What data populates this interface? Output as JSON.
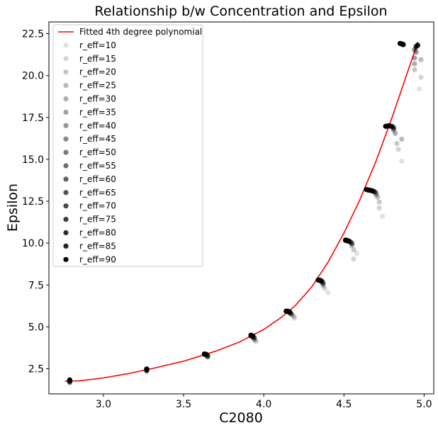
{
  "chart_data": {
    "type": "scatter",
    "title": "Relationship b/w Concentration and Epsilon",
    "xlabel": "C2080",
    "ylabel": "Epsilon",
    "xlim": [
      2.66,
      5.06
    ],
    "ylim": [
      1.0,
      23.2
    ],
    "xticks": [
      3.0,
      3.5,
      4.0,
      4.5,
      5.0
    ],
    "xtick_labels": [
      "3.0",
      "3.5",
      "4.0",
      "4.5",
      "5.0"
    ],
    "yticks": [
      2.5,
      5.0,
      7.5,
      10.0,
      12.5,
      15.0,
      17.5,
      20.0,
      22.5
    ],
    "ytick_labels": [
      "2.5",
      "5.0",
      "7.5",
      "10.0",
      "12.5",
      "15.0",
      "17.5",
      "20.0",
      "22.5"
    ],
    "grid": false,
    "legend_position": "top-left",
    "fit": {
      "name": "Fitted 4th degree polynomial",
      "color": "#ff0000",
      "x": [
        2.76,
        2.85,
        3.0,
        3.15,
        3.3,
        3.5,
        3.7,
        3.85,
        4.0,
        4.1,
        4.2,
        4.3,
        4.4,
        4.5,
        4.6,
        4.7,
        4.8,
        4.9,
        4.96
      ],
      "y": [
        1.75,
        1.78,
        1.95,
        2.2,
        2.5,
        2.95,
        3.55,
        4.1,
        4.85,
        5.5,
        6.3,
        7.4,
        8.85,
        10.6,
        12.6,
        14.9,
        17.5,
        20.3,
        22.0
      ]
    },
    "series": [
      {
        "name": "r_eff=10",
        "alpha": 0.12,
        "x": [
          2.79,
          3.27,
          3.65,
          3.95,
          4.19,
          4.4,
          4.58,
          4.74,
          4.86,
          4.97
        ],
        "y": [
          1.65,
          2.32,
          3.18,
          4.12,
          5.5,
          7.05,
          9.4,
          11.6,
          14.9,
          19.2
        ]
      },
      {
        "name": "r_eff=15",
        "alpha": 0.17,
        "x": [
          2.79,
          3.27,
          3.65,
          3.95,
          4.19,
          4.38,
          4.56,
          4.72,
          4.84,
          4.98
        ],
        "y": [
          1.67,
          2.35,
          3.2,
          4.18,
          5.6,
          7.3,
          9.05,
          12.1,
          15.6,
          19.9
        ]
      },
      {
        "name": "r_eff=20",
        "alpha": 0.22,
        "x": [
          2.79,
          3.27,
          3.65,
          3.94,
          4.18,
          4.37,
          4.56,
          4.72,
          4.83,
          4.94
        ],
        "y": [
          1.7,
          2.38,
          3.22,
          4.25,
          5.7,
          7.45,
          9.6,
          12.45,
          15.95,
          20.35
        ]
      },
      {
        "name": "r_eff=25",
        "alpha": 0.27,
        "x": [
          2.79,
          3.27,
          3.65,
          3.94,
          4.17,
          4.37,
          4.55,
          4.71,
          4.86,
          4.98
        ],
        "y": [
          1.72,
          2.4,
          3.25,
          4.3,
          5.75,
          7.55,
          9.85,
          12.75,
          16.2,
          20.95
        ]
      },
      {
        "name": "r_eff=30",
        "alpha": 0.32,
        "x": [
          2.79,
          3.27,
          3.65,
          3.94,
          4.17,
          4.37,
          4.55,
          4.7,
          4.82,
          4.94
        ],
        "y": [
          1.74,
          2.42,
          3.28,
          4.35,
          5.8,
          7.6,
          9.95,
          12.9,
          16.55,
          20.7
        ]
      },
      {
        "name": "r_eff=35",
        "alpha": 0.37,
        "x": [
          2.79,
          3.27,
          3.65,
          3.94,
          4.17,
          4.37,
          4.55,
          4.7,
          4.81,
          4.94
        ],
        "y": [
          1.76,
          2.43,
          3.3,
          4.38,
          5.82,
          7.65,
          10.0,
          13.0,
          16.75,
          21.05
        ]
      },
      {
        "name": "r_eff=40",
        "alpha": 0.42,
        "x": [
          2.79,
          3.27,
          3.64,
          3.93,
          4.16,
          4.36,
          4.54,
          4.69,
          4.81,
          4.95
        ],
        "y": [
          1.77,
          2.44,
          3.32,
          4.4,
          5.85,
          7.7,
          10.05,
          13.05,
          16.85,
          21.4
        ]
      },
      {
        "name": "r_eff=45",
        "alpha": 0.47,
        "x": [
          2.79,
          3.27,
          3.64,
          3.93,
          4.16,
          4.36,
          4.54,
          4.69,
          4.81,
          4.94
        ],
        "y": [
          1.78,
          2.45,
          3.33,
          4.42,
          5.87,
          7.72,
          10.08,
          13.08,
          16.9,
          21.55
        ]
      },
      {
        "name": "r_eff=50",
        "alpha": 0.52,
        "x": [
          2.79,
          3.27,
          3.64,
          3.93,
          4.16,
          4.36,
          4.53,
          4.68,
          4.8,
          4.95
        ],
        "y": [
          1.79,
          2.46,
          3.34,
          4.44,
          5.88,
          7.74,
          10.1,
          13.1,
          16.95,
          21.7
        ]
      },
      {
        "name": "r_eff=55",
        "alpha": 0.57,
        "x": [
          2.79,
          3.27,
          3.64,
          3.93,
          4.16,
          4.36,
          4.53,
          4.68,
          4.8,
          4.95
        ],
        "y": [
          1.8,
          2.46,
          3.35,
          4.45,
          5.9,
          7.75,
          10.12,
          13.12,
          16.97,
          21.75
        ]
      },
      {
        "name": "r_eff=60",
        "alpha": 0.62,
        "x": [
          2.79,
          3.27,
          3.64,
          3.93,
          4.16,
          4.35,
          4.53,
          4.67,
          4.79,
          4.96
        ],
        "y": [
          1.8,
          2.47,
          3.35,
          4.46,
          5.9,
          7.76,
          10.13,
          13.13,
          16.98,
          21.8
        ]
      },
      {
        "name": "r_eff=65",
        "alpha": 0.67,
        "x": [
          2.79,
          3.27,
          3.64,
          3.93,
          4.15,
          4.35,
          4.52,
          4.67,
          4.79,
          4.96
        ],
        "y": [
          1.81,
          2.47,
          3.36,
          4.47,
          5.91,
          7.77,
          10.14,
          13.14,
          16.99,
          21.82
        ]
      },
      {
        "name": "r_eff=70",
        "alpha": 0.72,
        "x": [
          2.79,
          3.27,
          3.64,
          3.92,
          4.15,
          4.35,
          4.52,
          4.66,
          4.78,
          4.87
        ],
        "y": [
          1.81,
          2.47,
          3.36,
          4.47,
          5.91,
          7.78,
          10.15,
          13.15,
          17.0,
          21.84
        ]
      },
      {
        "name": "r_eff=75",
        "alpha": 0.77,
        "x": [
          2.79,
          3.27,
          3.63,
          3.92,
          4.15,
          4.35,
          4.52,
          4.66,
          4.78,
          4.87
        ],
        "y": [
          1.82,
          2.48,
          3.37,
          4.48,
          5.92,
          7.78,
          10.16,
          13.16,
          17.0,
          21.86
        ]
      },
      {
        "name": "r_eff=80",
        "alpha": 0.82,
        "x": [
          2.79,
          3.27,
          3.63,
          3.92,
          4.15,
          4.34,
          4.51,
          4.65,
          4.77,
          4.86
        ],
        "y": [
          1.82,
          2.48,
          3.37,
          4.48,
          5.92,
          7.79,
          10.16,
          13.17,
          16.99,
          21.88
        ]
      },
      {
        "name": "r_eff=85",
        "alpha": 0.87,
        "x": [
          2.79,
          3.27,
          3.63,
          3.92,
          4.15,
          4.34,
          4.51,
          4.65,
          4.77,
          4.86
        ],
        "y": [
          1.83,
          2.48,
          3.38,
          4.49,
          5.93,
          7.8,
          10.17,
          13.18,
          16.98,
          21.9
        ]
      },
      {
        "name": "r_eff=90",
        "alpha": 1.0,
        "x": [
          2.79,
          3.27,
          3.63,
          3.92,
          4.14,
          4.34,
          4.51,
          4.64,
          4.76,
          4.85
        ],
        "y": [
          1.83,
          2.49,
          3.38,
          4.5,
          5.94,
          7.8,
          10.18,
          13.2,
          16.97,
          21.92
        ]
      }
    ]
  }
}
